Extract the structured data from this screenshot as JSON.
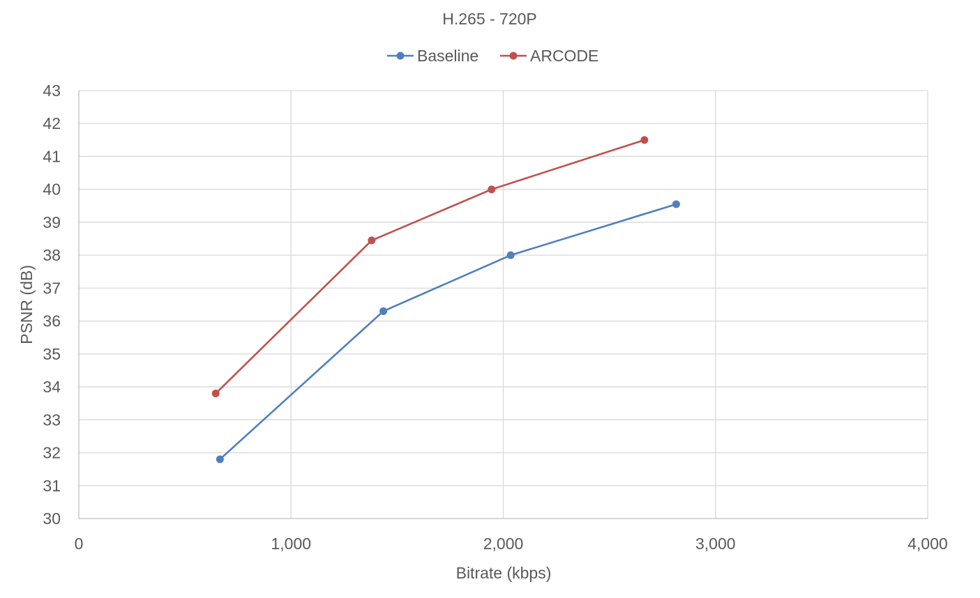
{
  "chart_data": {
    "type": "line",
    "title": "H.265 - 720P",
    "xlabel": "Bitrate (kbps)",
    "ylabel": "PSNR (dB)",
    "xlim": [
      0,
      4000
    ],
    "ylim": [
      30,
      43
    ],
    "x_ticks": [
      0,
      1000,
      2000,
      3000,
      4000
    ],
    "x_tick_labels": [
      "0",
      "1,000",
      "2,000",
      "3,000",
      "4,000"
    ],
    "y_ticks": [
      30,
      31,
      32,
      33,
      34,
      35,
      36,
      37,
      38,
      39,
      40,
      41,
      42,
      43
    ],
    "y_tick_labels": [
      "30",
      "31",
      "32",
      "33",
      "34",
      "35",
      "36",
      "37",
      "38",
      "39",
      "40",
      "41",
      "42",
      "43"
    ],
    "grid": true,
    "legend_position": "top",
    "series": [
      {
        "name": "Baseline",
        "color": "#4f7fbf",
        "points": [
          {
            "x": 665,
            "y": 31.8
          },
          {
            "x": 1435,
            "y": 36.3
          },
          {
            "x": 2035,
            "y": 38.0
          },
          {
            "x": 2815,
            "y": 39.55
          }
        ]
      },
      {
        "name": "ARCODE",
        "color": "#c0504d",
        "points": [
          {
            "x": 645,
            "y": 33.8
          },
          {
            "x": 1380,
            "y": 38.45
          },
          {
            "x": 1945,
            "y": 40.0
          },
          {
            "x": 2665,
            "y": 41.5
          }
        ]
      }
    ]
  }
}
